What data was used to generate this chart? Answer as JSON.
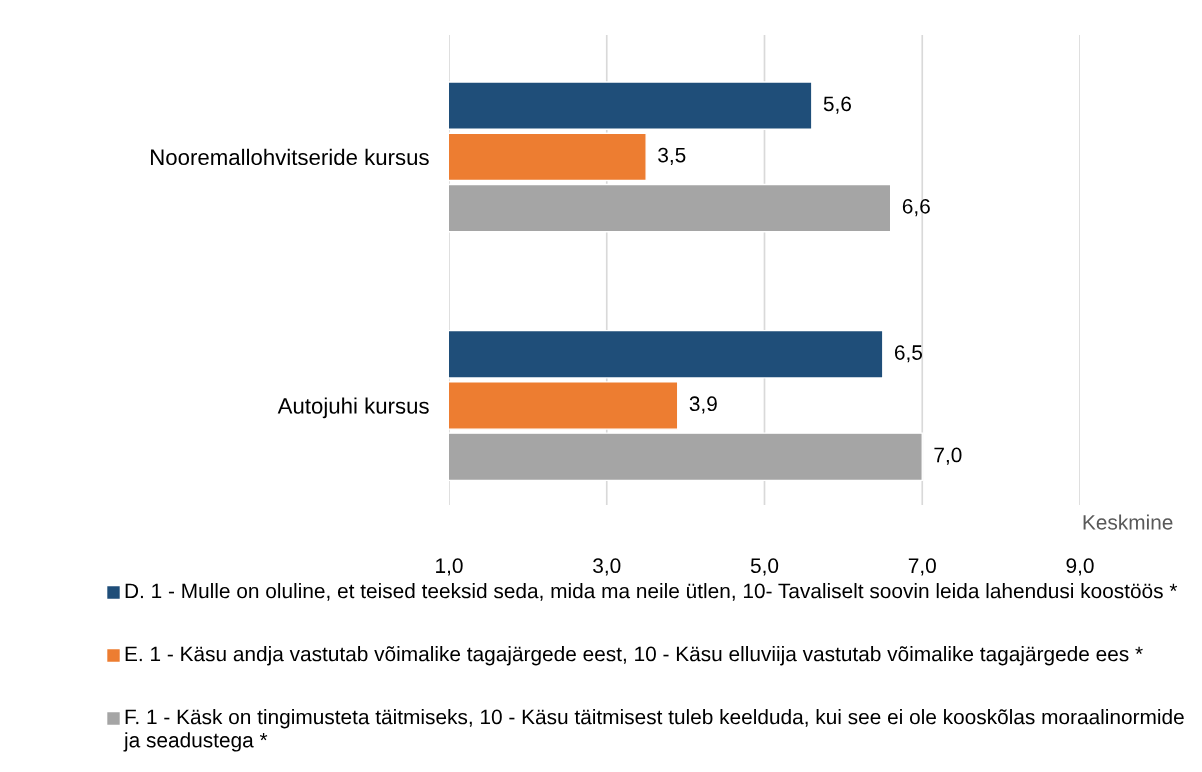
{
  "chart_data": {
    "type": "bar",
    "orientation": "horizontal",
    "xlabel": "Keskmine",
    "categories": [
      "Nooremallohvitseride kursus",
      "Autojuhi kursus"
    ],
    "series": [
      {
        "name": "D. 1 - Mulle on oluline, et teised teeksid seda, mida ma neile ütlen, 10- Tavaliselt soovin leida lahendusi koostöös *",
        "color": "#1f4e79",
        "values": [
          5.6,
          6.5
        ],
        "value_labels": [
          "5,6",
          "6,5"
        ]
      },
      {
        "name": "E. 1 - Käsu andja vastutab võimalike tagajärgede eest, 10 - Käsu elluviija vastutab võimalike tagajärgede ees *",
        "color": "#ed7d31",
        "values": [
          3.5,
          3.9
        ],
        "value_labels": [
          "3,5",
          "3,9"
        ]
      },
      {
        "name": "F. 1 - Käsk on tingimusteta täitmiseks, 10 - Käsu täitmisest tuleb keelduda, kui see ei ole kooskõlas moraalinormide ja seadustega *",
        "color": "#a5a5a5",
        "values": [
          6.6,
          7.0
        ],
        "value_labels": [
          "6,6",
          "7,0"
        ]
      }
    ],
    "xlim": [
      1,
      9
    ],
    "xticks": [
      {
        "value": 1,
        "label": "1,0"
      },
      {
        "value": 3,
        "label": "3,0"
      },
      {
        "value": 5,
        "label": "5,0"
      },
      {
        "value": 7,
        "label": "7,0"
      },
      {
        "value": 9,
        "label": "9,0"
      }
    ],
    "grid": "x",
    "legend": "bottom"
  }
}
